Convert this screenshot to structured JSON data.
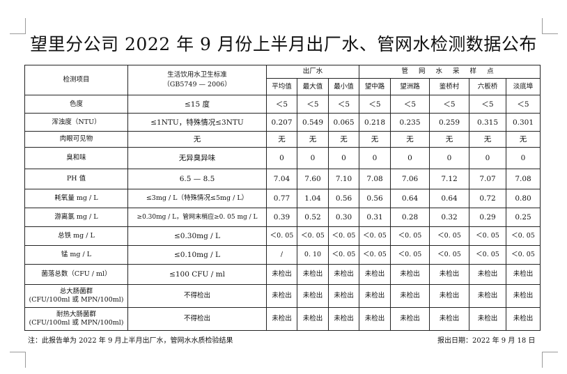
{
  "title": "望里分公司 2022 年 9 月份上半月出厂水、管网水检测数据公布",
  "header": {
    "item": "检测项目",
    "standard_line1": "生活饮用水卫生标准",
    "standard_line2": "（GB5749 — 2006）",
    "factory_group": "出厂水",
    "network_group": "管 网 水 采 样 点",
    "factory_cols": [
      "平均值",
      "最大值",
      "最小值"
    ],
    "network_cols": [
      "望中路",
      "望洲路",
      "鉴桥村",
      "六板桥",
      "淡底埠"
    ]
  },
  "rows": [
    {
      "item": "色度",
      "standard": "≤15 度",
      "values": [
        "＜5",
        "＜5",
        "＜5",
        "＜5",
        "＜5",
        "＜5",
        "＜5",
        "＜5"
      ]
    },
    {
      "item": "浑浊度（NTU）",
      "standard": "≤1NTU，特殊情况≤3NTU",
      "values": [
        "0.207",
        "0.549",
        "0.065",
        "0.218",
        "0.235",
        "0.259",
        "0.315",
        "0.301"
      ]
    },
    {
      "item": "肉眼可见物",
      "standard": "无",
      "values": [
        "无",
        "无",
        "无",
        "无",
        "无",
        "无",
        "无",
        "无"
      ]
    },
    {
      "item": "臭和味",
      "standard": "无异臭异味",
      "values": [
        "0",
        "0",
        "0",
        "0",
        "0",
        "0",
        "0",
        "0"
      ]
    },
    {
      "item": "PH 值",
      "standard": "6.5 — 8.5",
      "values": [
        "7.04",
        "7.60",
        "7.10",
        "7.08",
        "7.06",
        "7.12",
        "7.07",
        "7.08"
      ]
    },
    {
      "item": "耗氧量 mg / L",
      "standard": "≤3mg / L（特殊情况≤5mg / L）",
      "values": [
        "0.77",
        "1.04",
        "0.56",
        "0.56",
        "0.64",
        "0.64",
        "0.72",
        "0.80"
      ]
    },
    {
      "item": "游离氯 mg / L",
      "standard": "≥0.30mg / L，管网末梢应≥0. 05 mg / L",
      "values": [
        "0.39",
        "0.52",
        "0.30",
        "0.31",
        "0.28",
        "0.32",
        "0.29",
        "0.25"
      ]
    },
    {
      "item": "总铁 mg / L",
      "standard": "≤0.30mg / L",
      "values": [
        "＜0. 05",
        "＜0. 05",
        "＜0. 05",
        "＜0. 05",
        "＜0. 05",
        "＜0. 05",
        "＜0. 05",
        "＜0. 05"
      ]
    },
    {
      "item": "锰 mg / L",
      "standard": "≤0.10mg / L",
      "values": [
        "/",
        "0. 10",
        "＜0. 05",
        "＜0. 05",
        "＜0. 05",
        "＜0. 05",
        "＜0. 05",
        "＜0. 05"
      ]
    },
    {
      "item": "菌落总数（CFU / ml）",
      "standard": "≤100 CFU / ml",
      "values": [
        "未检出",
        "未检出",
        "未检出",
        "未检出",
        "未检出",
        "未检出",
        "未检出",
        "未检出"
      ]
    },
    {
      "item_line1": "总大肠菌群",
      "item_line2": "(CFU/100ml 或 MPN/100ml)",
      "standard": "不得检出",
      "values": [
        "未检出",
        "未检出",
        "未检出",
        "未检出",
        "未检出",
        "未检出",
        "未检出",
        "未检出"
      ]
    },
    {
      "item_line1": "耐热大肠菌群",
      "item_line2": "(CFU/100ml 或 MPN/100ml)",
      "standard": "不得检出",
      "values": [
        "未检出",
        "未检出",
        "未检出",
        "未检出",
        "未检出",
        "未检出",
        "未检出",
        "未检出"
      ]
    }
  ],
  "footer": {
    "note": "注：此报告单为 2022 年 9 月上半月出厂水，管网水水质检验结果",
    "report_date": "报出日期：2022 年 9 月 18 日"
  }
}
